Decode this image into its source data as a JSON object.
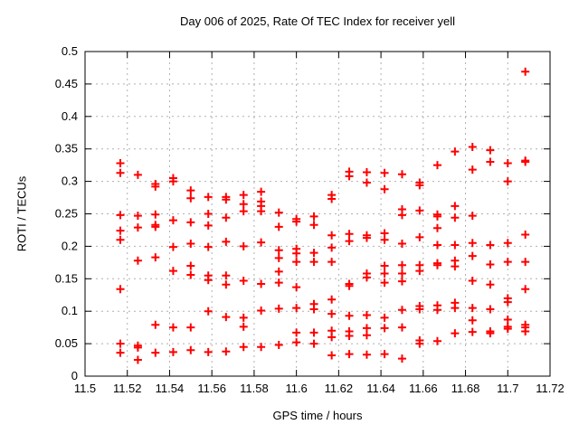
{
  "chart_data": {
    "type": "scatter",
    "title": "Day 006 of 2025, Rate Of TEC Index for receiver yell",
    "xlabel": "GPS time / hours",
    "ylabel": "ROTI / TECUs",
    "xlim": [
      11.5,
      11.72
    ],
    "ylim": [
      0,
      0.5
    ],
    "grid": true,
    "legend": "none",
    "marker": "plus",
    "marker_color": "#ff0000",
    "grid_color": "#b0b0b0",
    "axis_color": "#000000",
    "xticks": {
      "values": [
        11.5,
        11.52,
        11.54,
        11.56,
        11.58,
        11.6,
        11.62,
        11.64,
        11.66,
        11.68,
        11.7,
        11.72
      ],
      "labels": [
        "11.5",
        "11.52",
        "11.54",
        "11.56",
        "11.58",
        "11.6",
        "11.62",
        "11.64",
        "11.66",
        "11.68",
        "11.7",
        "11.72"
      ]
    },
    "yticks": {
      "values": [
        0,
        0.05,
        0.1,
        0.15,
        0.2,
        0.25,
        0.3,
        0.35,
        0.4,
        0.45,
        0.5
      ],
      "labels": [
        "0",
        "0.05",
        "0.1",
        "0.15",
        "0.2",
        "0.25",
        "0.3",
        "0.35",
        "0.4",
        "0.45",
        "0.5"
      ]
    },
    "series_name": "ROTI",
    "columns": [
      {
        "t": 11.5167,
        "values": [
          0.328,
          0.313,
          0.248,
          0.224,
          0.21,
          0.134,
          0.05,
          0.036
        ]
      },
      {
        "t": 11.525,
        "values": [
          0.31,
          0.247,
          0.229,
          0.178,
          0.047,
          0.044,
          0.025
        ]
      },
      {
        "t": 11.5333,
        "values": [
          0.296,
          0.292,
          0.249,
          0.233,
          0.23,
          0.183,
          0.079,
          0.036
        ]
      },
      {
        "t": 11.5417,
        "values": [
          0.305,
          0.3,
          0.24,
          0.199,
          0.162,
          0.075,
          0.037
        ]
      },
      {
        "t": 11.55,
        "values": [
          0.286,
          0.274,
          0.237,
          0.204,
          0.17,
          0.156,
          0.075,
          0.04
        ]
      },
      {
        "t": 11.5583,
        "values": [
          0.276,
          0.25,
          0.232,
          0.199,
          0.155,
          0.148,
          0.1,
          0.037
        ]
      },
      {
        "t": 11.5667,
        "values": [
          0.276,
          0.272,
          0.244,
          0.207,
          0.155,
          0.141,
          0.091,
          0.038
        ]
      },
      {
        "t": 11.575,
        "values": [
          0.279,
          0.265,
          0.254,
          0.2,
          0.147,
          0.09,
          0.076,
          0.045
        ]
      },
      {
        "t": 11.5833,
        "values": [
          0.284,
          0.269,
          0.262,
          0.254,
          0.206,
          0.142,
          0.101,
          0.045
        ]
      },
      {
        "t": 11.5917,
        "values": [
          0.252,
          0.23,
          0.194,
          0.182,
          0.161,
          0.144,
          0.104,
          0.048
        ]
      },
      {
        "t": 11.6,
        "values": [
          0.242,
          0.238,
          0.196,
          0.189,
          0.176,
          0.137,
          0.105,
          0.067,
          0.052
        ]
      },
      {
        "t": 11.6083,
        "values": [
          0.246,
          0.233,
          0.19,
          0.176,
          0.111,
          0.103,
          0.067,
          0.05
        ]
      },
      {
        "t": 11.6167,
        "values": [
          0.279,
          0.273,
          0.217,
          0.198,
          0.176,
          0.118,
          0.096,
          0.07,
          0.06,
          0.032
        ]
      },
      {
        "t": 11.625,
        "values": [
          0.315,
          0.308,
          0.219,
          0.208,
          0.142,
          0.139,
          0.093,
          0.069,
          0.062,
          0.034
        ]
      },
      {
        "t": 11.6333,
        "values": [
          0.314,
          0.298,
          0.217,
          0.213,
          0.158,
          0.152,
          0.094,
          0.074,
          0.063,
          0.033
        ]
      },
      {
        "t": 11.6417,
        "values": [
          0.313,
          0.288,
          0.22,
          0.21,
          0.17,
          0.158,
          0.144,
          0.09,
          0.074,
          0.034
        ]
      },
      {
        "t": 11.65,
        "values": [
          0.311,
          0.257,
          0.248,
          0.204,
          0.171,
          0.158,
          0.146,
          0.102,
          0.075,
          0.027
        ]
      },
      {
        "t": 11.6583,
        "values": [
          0.298,
          0.294,
          0.255,
          0.214,
          0.171,
          0.162,
          0.108,
          0.103,
          0.055,
          0.05
        ]
      },
      {
        "t": 11.6667,
        "values": [
          0.325,
          0.249,
          0.246,
          0.228,
          0.202,
          0.174,
          0.171,
          0.109,
          0.102,
          0.054
        ]
      },
      {
        "t": 11.675,
        "values": [
          0.346,
          0.262,
          0.244,
          0.202,
          0.178,
          0.169,
          0.113,
          0.105,
          0.066
        ]
      },
      {
        "t": 11.6833,
        "values": [
          0.353,
          0.318,
          0.247,
          0.205,
          0.185,
          0.147,
          0.105,
          0.086,
          0.068
        ]
      },
      {
        "t": 11.6917,
        "values": [
          0.348,
          0.33,
          0.202,
          0.172,
          0.141,
          0.103,
          0.069,
          0.066
        ]
      },
      {
        "t": 11.7,
        "values": [
          0.328,
          0.3,
          0.205,
          0.176,
          0.12,
          0.114,
          0.087,
          0.076,
          0.073
        ]
      },
      {
        "t": 11.7083,
        "values": [
          0.469,
          0.332,
          0.33,
          0.218,
          0.176,
          0.134,
          0.079,
          0.075,
          0.069
        ]
      }
    ]
  }
}
